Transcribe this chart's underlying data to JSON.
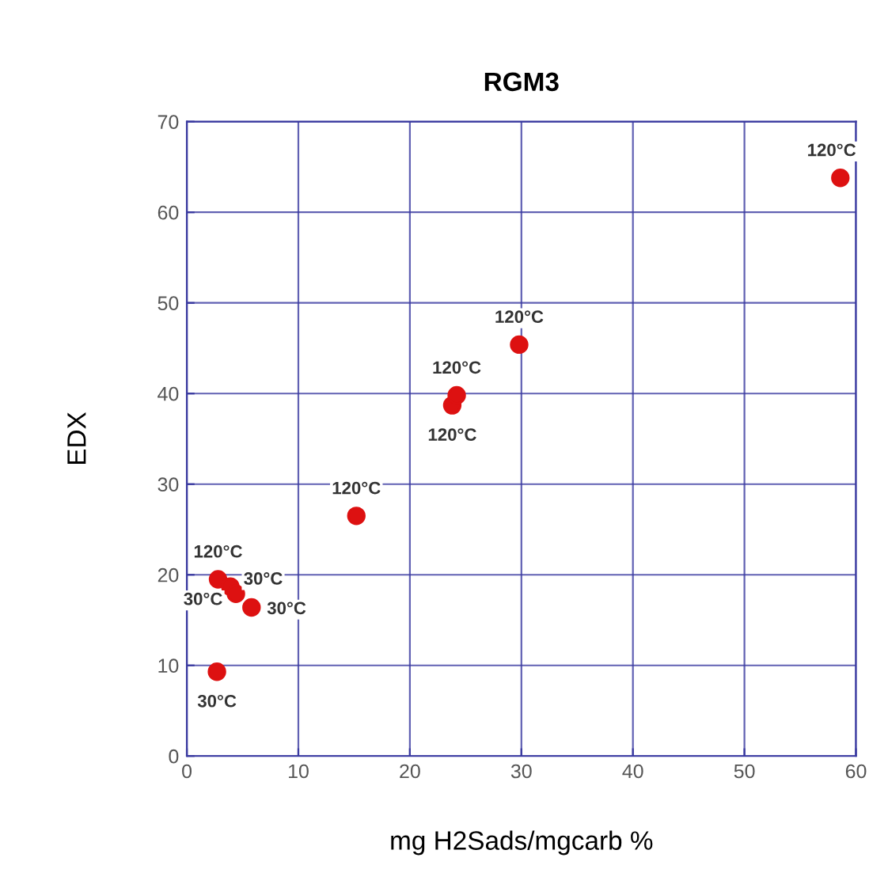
{
  "chart_data": {
    "type": "scatter",
    "title": "RGM3",
    "xlabel": "mg H2Sads/mgcarb %",
    "ylabel": "EDX",
    "x": [
      2.7,
      2.8,
      3.9,
      4.4,
      5.8,
      15.2,
      23.8,
      24.2,
      29.8,
      58.6
    ],
    "series": [
      {
        "color": "#dd1111",
        "values": [
          9.3,
          19.5,
          18.7,
          17.9,
          16.4,
          26.5,
          38.7,
          39.8,
          45.4,
          63.8
        ]
      }
    ],
    "xlim": [
      0,
      60
    ],
    "xticks": [
      0,
      10,
      20,
      30,
      40,
      50,
      60
    ],
    "ylim": [
      0,
      70
    ],
    "yticks": [
      0,
      10,
      20,
      30,
      40,
      50,
      60,
      70
    ],
    "grid": true,
    "marker": "circle",
    "annotations": [
      {
        "text": "30°C",
        "x": 2.7,
        "y": 9.3
      },
      {
        "text": "120°C",
        "x": 2.8,
        "y": 19.5
      },
      {
        "text": "30°C",
        "x": 3.9,
        "y": 18.7
      },
      {
        "text": "30°C",
        "x": 4.4,
        "y": 17.9
      },
      {
        "text": "30°C",
        "x": 5.8,
        "y": 16.4
      },
      {
        "text": "120°C",
        "x": 15.2,
        "y": 26.5
      },
      {
        "text": "120°C",
        "x": 23.8,
        "y": 38.7
      },
      {
        "text": "120°C",
        "x": 24.2,
        "y": 39.8
      },
      {
        "text": "120°C",
        "x": 29.8,
        "y": 45.4
      },
      {
        "text": "120°C",
        "x": 58.6,
        "y": 63.8
      }
    ]
  }
}
